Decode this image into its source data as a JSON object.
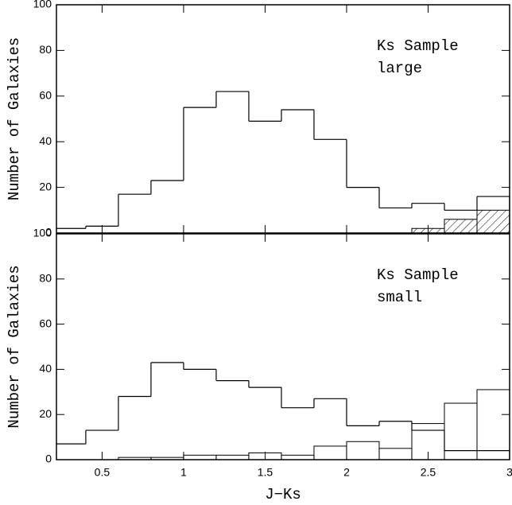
{
  "chart_data": [
    {
      "type": "histogram",
      "ylabel": "Number of Galaxies",
      "annotation": [
        "Ks Sample",
        "large"
      ],
      "bins": [
        0.2,
        0.4,
        0.6,
        0.8,
        1.0,
        1.2,
        1.4,
        1.6,
        1.8,
        2.0,
        2.2,
        2.4,
        2.6,
        2.8,
        3.0
      ],
      "series": [
        {
          "values": [
            2,
            3,
            17,
            23,
            55,
            62,
            49,
            54,
            41,
            20,
            11,
            13,
            10,
            16
          ]
        },
        {
          "values": [
            0,
            0,
            0,
            0,
            0,
            0,
            0,
            0,
            0,
            0,
            0,
            2,
            6,
            10
          ],
          "hatch": "/"
        }
      ],
      "xlim": [
        0.22,
        3
      ],
      "ylim": [
        0,
        100
      ],
      "xticks": [
        0.5,
        1,
        1.5,
        2,
        2.5,
        3
      ],
      "yticks": [
        0,
        20,
        40,
        60,
        80,
        100
      ]
    },
    {
      "type": "histogram",
      "xlabel": "J−Ks",
      "ylabel": "Number of Galaxies",
      "annotation": [
        "Ks Sample",
        "small"
      ],
      "bins": [
        0.2,
        0.4,
        0.6,
        0.8,
        1.0,
        1.2,
        1.4,
        1.6,
        1.8,
        2.0,
        2.2,
        2.4,
        2.6,
        2.8,
        3.0
      ],
      "series": [
        {
          "values": [
            7,
            13,
            28,
            43,
            40,
            35,
            32,
            23,
            27,
            15,
            17,
            13,
            4,
            4
          ]
        },
        {
          "values": [
            0,
            0,
            1,
            1,
            2,
            2,
            3,
            2,
            6,
            8,
            5,
            16,
            25,
            31
          ],
          "hatch": "\\"
        }
      ],
      "xlim": [
        0.22,
        3
      ],
      "ylim": [
        0,
        100
      ],
      "xticks": [
        0.5,
        1,
        1.5,
        2,
        2.5,
        3
      ],
      "yticks": [
        0,
        20,
        40,
        60,
        80,
        100
      ]
    }
  ]
}
